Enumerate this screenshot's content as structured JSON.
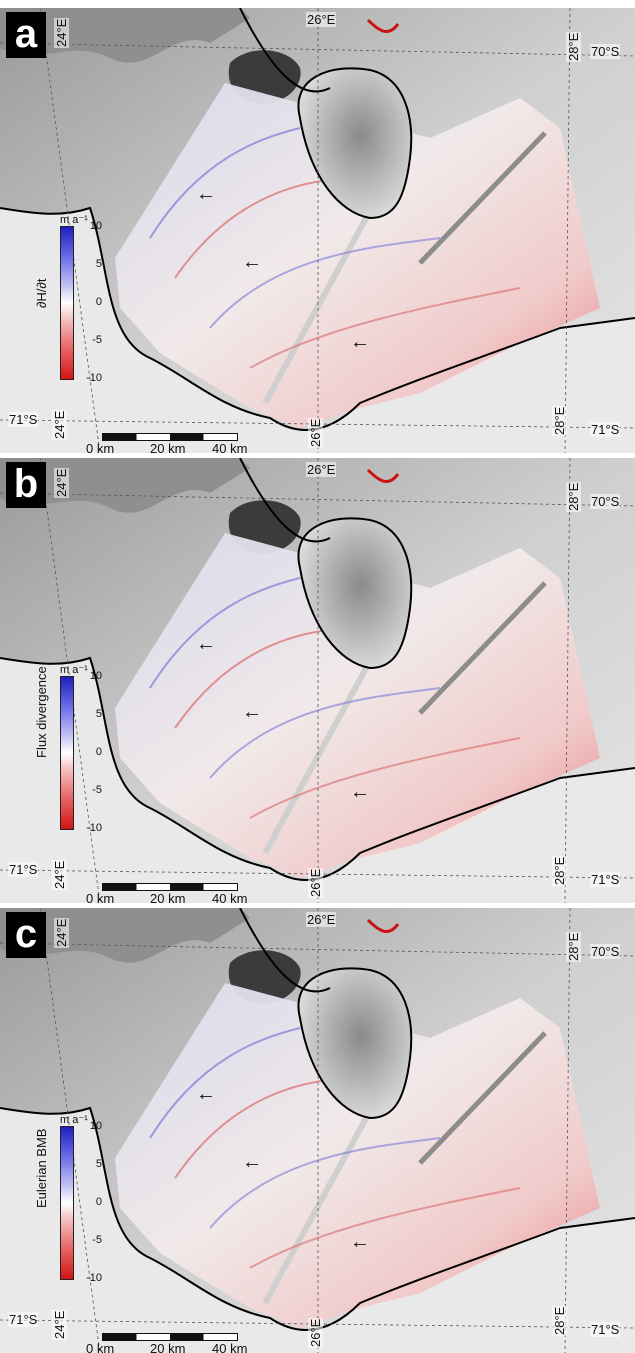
{
  "panels": [
    {
      "label": "a",
      "colorbar_title": "∂H/∂t",
      "colorbar_unit": "m a⁻¹",
      "colorbar_ticks": [
        "10",
        "5",
        "0",
        "-5",
        "-10"
      ],
      "coords": {
        "lon24_top": "24°E",
        "lon26_top": "26°E",
        "lon28_top": "28°E",
        "lat70": "70°S",
        "lat71_left": "71°S",
        "lon24_bottom": "24°E",
        "lon26_bottom": "26°E",
        "lon28_bottom": "28°E",
        "lat71_right": "71°S"
      },
      "scalebar": {
        "start": "0 km",
        "mid": "20 km",
        "end": "40 km"
      },
      "arrow": "←"
    },
    {
      "label": "b",
      "colorbar_title": "Flux divergence",
      "colorbar_unit": "m a⁻¹",
      "colorbar_ticks": [
        "10",
        "5",
        "0",
        "-5",
        "-10"
      ],
      "coords": {
        "lon24_top": "24°E",
        "lon26_top": "26°E",
        "lon28_top": "28°E",
        "lat70": "70°S",
        "lat71_left": "71°S",
        "lon24_bottom": "24°E",
        "lon26_bottom": "26°E",
        "lon28_bottom": "28°E",
        "lat71_right": "71°S"
      },
      "scalebar": {
        "start": "0 km",
        "mid": "20 km",
        "end": "40 km"
      },
      "arrow": "←"
    },
    {
      "label": "c",
      "colorbar_title": "Eulerian BMB",
      "colorbar_unit": "m a⁻¹",
      "colorbar_ticks": [
        "10",
        "5",
        "0",
        "-5",
        "-10"
      ],
      "coords": {
        "lon24_top": "24°E",
        "lon26_top": "26°E",
        "lon28_top": "28°E",
        "lat70": "70°S",
        "lat71_left": "71°S",
        "lon24_bottom": "24°E",
        "lon26_bottom": "26°E",
        "lon28_bottom": "28°E",
        "lat71_right": "71°S"
      },
      "scalebar": {
        "start": "0 km",
        "mid": "20 km",
        "end": "40 km"
      },
      "arrow": "←"
    }
  ],
  "colors": {
    "positive": "#1f1fbf",
    "negative": "#d41414",
    "land": "#bdbdbd",
    "coastline": "#000000"
  }
}
